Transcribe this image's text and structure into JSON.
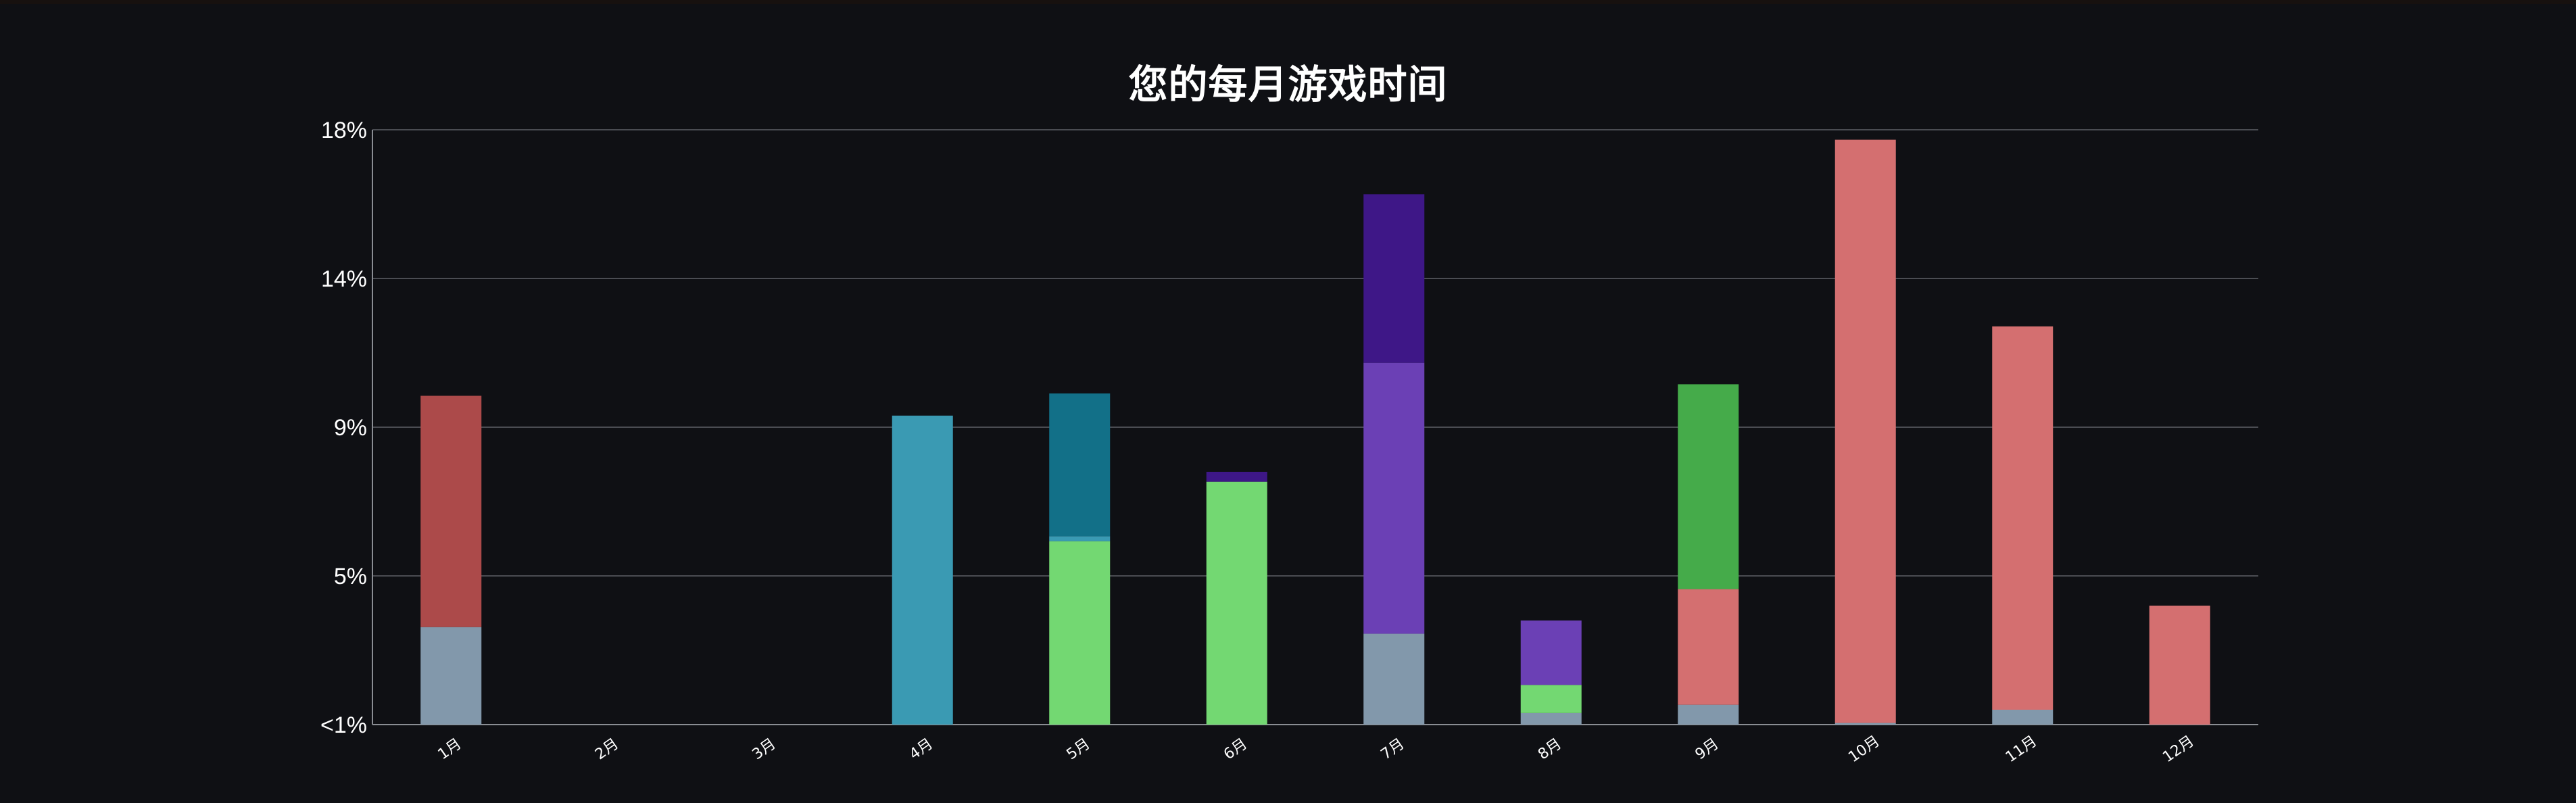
{
  "chart_data": {
    "type": "bar",
    "stacked": true,
    "title": "您的每月游戏时间",
    "xlabel": "",
    "ylabel": "",
    "categories": [
      "1月",
      "2月",
      "3月",
      "4月",
      "5月",
      "6月",
      "7月",
      "8月",
      "9月",
      "10月",
      "11月",
      "12月"
    ],
    "y_tick_labels": [
      "<1%",
      "5%",
      "9%",
      "14%",
      "18%"
    ],
    "ylim": [
      0,
      18
    ],
    "grid": true,
    "legend": "none",
    "segments": [
      [
        {
          "value": 2.95,
          "color": "#8298ab"
        },
        {
          "value": 7.0,
          "color": "#ac4a4a"
        }
      ],
      [],
      [],
      [
        {
          "value": 9.35,
          "color": "#3a9ab3"
        }
      ],
      [
        {
          "value": 5.55,
          "color": "#73d872"
        },
        {
          "value": 0.15,
          "color": "#3a9ab3"
        },
        {
          "value": 4.32,
          "color": "#127088"
        }
      ],
      [
        {
          "value": 7.35,
          "color": "#73d872"
        },
        {
          "value": 0.3,
          "color": "#3e1787"
        }
      ],
      [
        {
          "value": 2.75,
          "color": "#8298ab"
        },
        {
          "value": 8.2,
          "color": "#6b40b5"
        },
        {
          "value": 5.1,
          "color": "#3e1787"
        }
      ],
      [
        {
          "value": 0.35,
          "color": "#8298ab"
        },
        {
          "value": 0.85,
          "color": "#73d872"
        },
        {
          "value": 1.95,
          "color": "#6b40b5"
        }
      ],
      [
        {
          "value": 0.6,
          "color": "#8298ab"
        },
        {
          "value": 3.5,
          "color": "#d46f70"
        },
        {
          "value": 6.2,
          "color": "#45ab4a"
        }
      ],
      [
        {
          "value": 0.05,
          "color": "#8298ab"
        },
        {
          "value": 17.65,
          "color": "#d46f70"
        }
      ],
      [
        {
          "value": 0.45,
          "color": "#8298ab"
        },
        {
          "value": 11.6,
          "color": "#d46f70"
        }
      ],
      [
        {
          "value": 3.6,
          "color": "#d46f70"
        }
      ]
    ]
  }
}
